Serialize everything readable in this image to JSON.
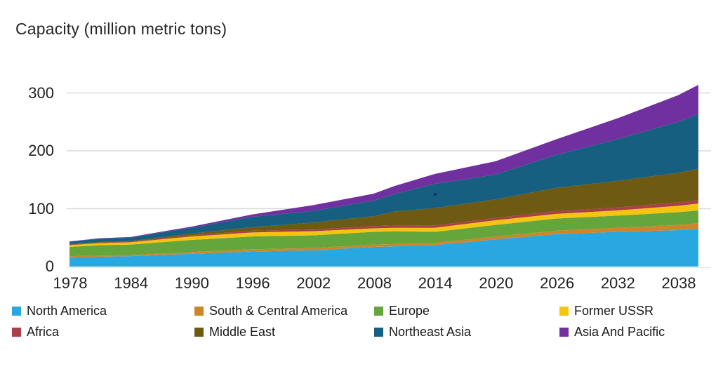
{
  "title": "Capacity (million metric tons)",
  "chart_data": {
    "type": "area",
    "stacked": true,
    "title": "Capacity (million metric tons)",
    "ylabel": "Capacity (million metric tons)",
    "xlabel": "",
    "x": [
      1978,
      1981,
      1984,
      1990,
      1996,
      2002,
      2008,
      2010,
      2014,
      2020,
      2026,
      2032,
      2038,
      2040
    ],
    "series": [
      {
        "name": "North America",
        "color": "#29a8df",
        "values": [
          16,
          17,
          18,
          22,
          26,
          28,
          34,
          35,
          37,
          47,
          56,
          60,
          63,
          65
        ]
      },
      {
        "name": "South & Central America",
        "color": "#ce8529",
        "values": [
          2,
          2,
          2,
          3,
          4,
          4,
          4,
          4,
          4,
          5,
          6,
          7,
          9,
          10
        ]
      },
      {
        "name": "Europe",
        "color": "#64a53c",
        "values": [
          16,
          18,
          18,
          21,
          22,
          22,
          22,
          22,
          19,
          20,
          21,
          21,
          22,
          22
        ]
      },
      {
        "name": "Former USSR",
        "color": "#f5c410",
        "values": [
          3,
          3.5,
          4,
          6,
          7,
          7,
          6,
          6,
          7,
          8,
          8,
          9,
          11,
          12
        ]
      },
      {
        "name": "Africa",
        "color": "#a93f49",
        "values": [
          1,
          1,
          1,
          2,
          3,
          3,
          4,
          4,
          4,
          4,
          5,
          5,
          6,
          6
        ]
      },
      {
        "name": "Middle East",
        "color": "#6e5a12",
        "values": [
          1,
          1,
          1,
          3,
          6,
          12,
          17,
          24,
          30,
          32,
          40,
          46,
          51,
          54
        ]
      },
      {
        "name": "Northeast Asia",
        "color": "#175f80",
        "values": [
          4,
          5.5,
          6,
          10,
          18,
          20,
          27,
          30,
          42,
          43,
          57,
          72,
          88,
          95
        ]
      },
      {
        "name": "Asia And Pacific",
        "color": "#7030a0",
        "values": [
          0.5,
          1,
          1,
          2,
          4,
          10,
          12,
          14,
          17,
          23,
          27,
          36,
          46,
          50
        ]
      }
    ],
    "x_ticks": [
      1978,
      1984,
      1990,
      1996,
      2002,
      2008,
      2014,
      2020,
      2026,
      2032,
      2038
    ],
    "y_ticks": [
      0,
      100,
      200,
      300
    ],
    "xlim": [
      1978,
      2040
    ],
    "ylim": [
      0,
      320
    ],
    "grid": "horizontal",
    "gridline_color": "#d9d9d9",
    "axis_line_color": "#e6e6e6",
    "text_color": "#202020",
    "background": "#ffffff",
    "legend_position": "bottom",
    "legend_rows": [
      [
        "North America",
        "South & Central America",
        "Europe",
        "Former USSR"
      ],
      [
        "Africa",
        "Middle East",
        "Northeast Asia",
        "Asia And Pacific"
      ]
    ]
  }
}
